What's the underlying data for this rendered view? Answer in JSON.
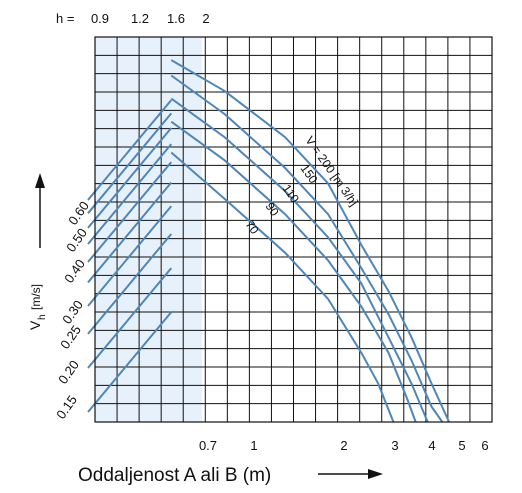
{
  "chart_data": {
    "type": "line",
    "title": "",
    "top_axis": {
      "prefix": "h =",
      "ticks": [
        "0.9",
        "1.2",
        "1.6",
        "2"
      ]
    },
    "x_axis": {
      "label": "Oddaljenost A ali B (m)",
      "scale": "log",
      "ticks": [
        "0.7",
        "1",
        "2",
        "3",
        "4",
        "5",
        "6"
      ],
      "range": [
        0.42,
        6
      ]
    },
    "y_axis": {
      "label": "V",
      "label_subscript": "h",
      "label_unit": "[m/s]",
      "ticks": [
        "0.60",
        "0.50",
        "0.40",
        "0.30",
        "0.25",
        "0.20",
        "0.15"
      ],
      "range": [
        0.15,
        0.6
      ]
    },
    "shaded_region": {
      "x_from": 0.42,
      "x_to": 0.7,
      "color": "#e6f1fb"
    },
    "grid": true,
    "line_color": "#4f86b8",
    "series": [
      {
        "name": "V = 200 [m 3/h]",
        "points": [
          [
            0.7,
            0.62
          ],
          [
            1.0,
            0.58
          ],
          [
            1.5,
            0.52
          ],
          [
            2.0,
            0.46
          ],
          [
            2.5,
            0.38
          ],
          [
            3.0,
            0.32
          ],
          [
            3.5,
            0.26
          ],
          [
            4.0,
            0.2
          ],
          [
            4.5,
            0.15
          ]
        ]
      },
      {
        "name": "150",
        "points": [
          [
            0.7,
            0.6
          ],
          [
            1.0,
            0.55
          ],
          [
            1.5,
            0.48
          ],
          [
            2.0,
            0.42
          ],
          [
            2.5,
            0.35
          ],
          [
            3.0,
            0.29
          ],
          [
            3.5,
            0.23
          ],
          [
            4.0,
            0.17
          ],
          [
            4.3,
            0.15
          ]
        ]
      },
      {
        "name": "110",
        "points": [
          [
            0.7,
            0.57
          ],
          [
            1.0,
            0.52
          ],
          [
            1.5,
            0.45
          ],
          [
            2.0,
            0.39
          ],
          [
            2.5,
            0.33
          ],
          [
            3.0,
            0.26
          ],
          [
            3.5,
            0.2
          ],
          [
            3.9,
            0.15
          ]
        ]
      },
      {
        "name": "90",
        "points": [
          [
            0.7,
            0.54
          ],
          [
            1.0,
            0.49
          ],
          [
            1.5,
            0.42
          ],
          [
            2.0,
            0.36
          ],
          [
            2.5,
            0.3
          ],
          [
            3.0,
            0.24
          ],
          [
            3.4,
            0.18
          ],
          [
            3.6,
            0.15
          ]
        ]
      },
      {
        "name": "70",
        "points": [
          [
            0.7,
            0.5
          ],
          [
            1.0,
            0.44
          ],
          [
            1.5,
            0.37
          ],
          [
            2.0,
            0.31
          ],
          [
            2.5,
            0.24
          ],
          [
            2.8,
            0.2
          ],
          [
            3.1,
            0.15
          ]
        ]
      }
    ],
    "series_label_angle": 55,
    "left_fan_lines": [
      {
        "y_start": 0.6,
        "x_end": 0.7
      },
      {
        "y_start": 0.55,
        "x_end": 0.7
      },
      {
        "y_start": 0.5,
        "x_end": 0.7
      },
      {
        "y_start": 0.45,
        "x_end": 0.7
      },
      {
        "y_start": 0.4,
        "x_end": 0.7
      },
      {
        "y_start": 0.35,
        "x_end": 0.7
      },
      {
        "y_start": 0.3,
        "x_end": 0.7
      },
      {
        "y_start": 0.25,
        "x_end": 0.7
      },
      {
        "y_start": 0.2,
        "x_end": 0.7
      },
      {
        "y_start": 0.15,
        "x_end": 0.7
      }
    ]
  }
}
